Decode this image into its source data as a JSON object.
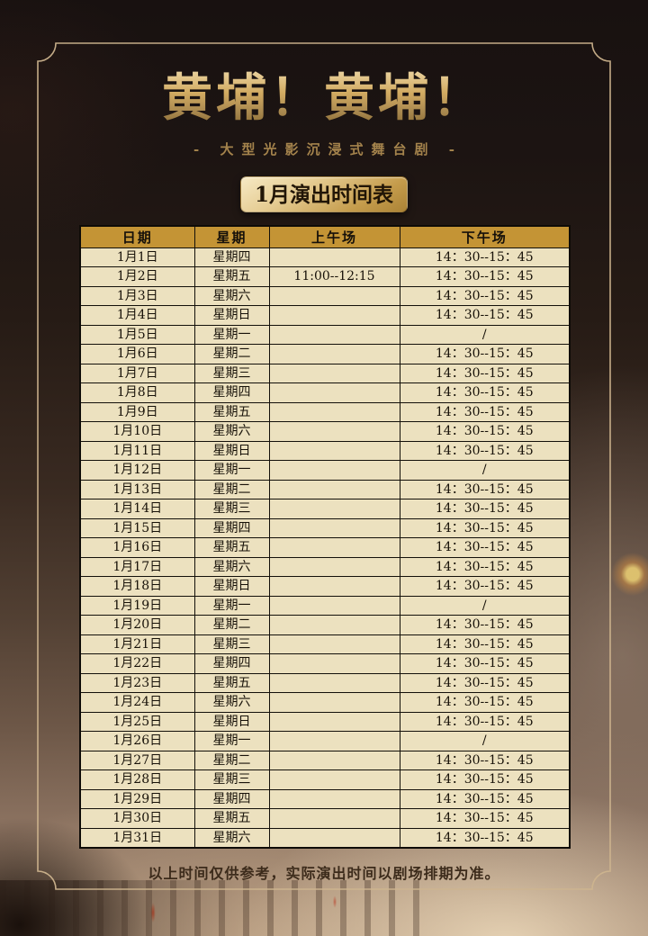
{
  "poster": {
    "title": "黄埔！黄埔！",
    "subtitle": "- 大型光影沉浸式舞台剧 -",
    "badge": "1月演出时间表",
    "footnote": "以上时间仅供参考，实际演出时间以剧场排期为准。"
  },
  "table": {
    "headers": [
      "日期",
      "星期",
      "上午场",
      "下午场"
    ],
    "rows": [
      {
        "date": "1月1日",
        "weekday": "星期四",
        "morning": "",
        "afternoon": "14：30--15：45"
      },
      {
        "date": "1月2日",
        "weekday": "星期五",
        "morning": "11:00--12:15",
        "afternoon": "14：30--15：45"
      },
      {
        "date": "1月3日",
        "weekday": "星期六",
        "morning": "",
        "afternoon": "14：30--15：45"
      },
      {
        "date": "1月4日",
        "weekday": "星期日",
        "morning": "",
        "afternoon": "14：30--15：45"
      },
      {
        "date": "1月5日",
        "weekday": "星期一",
        "morning": "",
        "afternoon": "/"
      },
      {
        "date": "1月6日",
        "weekday": "星期二",
        "morning": "",
        "afternoon": "14：30--15：45"
      },
      {
        "date": "1月7日",
        "weekday": "星期三",
        "morning": "",
        "afternoon": "14：30--15：45"
      },
      {
        "date": "1月8日",
        "weekday": "星期四",
        "morning": "",
        "afternoon": "14：30--15：45"
      },
      {
        "date": "1月9日",
        "weekday": "星期五",
        "morning": "",
        "afternoon": "14：30--15：45"
      },
      {
        "date": "1月10日",
        "weekday": "星期六",
        "morning": "",
        "afternoon": "14：30--15：45"
      },
      {
        "date": "1月11日",
        "weekday": "星期日",
        "morning": "",
        "afternoon": "14：30--15：45"
      },
      {
        "date": "1月12日",
        "weekday": "星期一",
        "morning": "",
        "afternoon": "/"
      },
      {
        "date": "1月13日",
        "weekday": "星期二",
        "morning": "",
        "afternoon": "14：30--15：45"
      },
      {
        "date": "1月14日",
        "weekday": "星期三",
        "morning": "",
        "afternoon": "14：30--15：45"
      },
      {
        "date": "1月15日",
        "weekday": "星期四",
        "morning": "",
        "afternoon": "14：30--15：45"
      },
      {
        "date": "1月16日",
        "weekday": "星期五",
        "morning": "",
        "afternoon": "14：30--15：45"
      },
      {
        "date": "1月17日",
        "weekday": "星期六",
        "morning": "",
        "afternoon": "14：30--15：45"
      },
      {
        "date": "1月18日",
        "weekday": "星期日",
        "morning": "",
        "afternoon": "14：30--15：45"
      },
      {
        "date": "1月19日",
        "weekday": "星期一",
        "morning": "",
        "afternoon": "/"
      },
      {
        "date": "1月20日",
        "weekday": "星期二",
        "morning": "",
        "afternoon": "14：30--15：45"
      },
      {
        "date": "1月21日",
        "weekday": "星期三",
        "morning": "",
        "afternoon": "14：30--15：45"
      },
      {
        "date": "1月22日",
        "weekday": "星期四",
        "morning": "",
        "afternoon": "14：30--15：45"
      },
      {
        "date": "1月23日",
        "weekday": "星期五",
        "morning": "",
        "afternoon": "14：30--15：45"
      },
      {
        "date": "1月24日",
        "weekday": "星期六",
        "morning": "",
        "afternoon": "14：30--15：45"
      },
      {
        "date": "1月25日",
        "weekday": "星期日",
        "morning": "",
        "afternoon": "14：30--15：45"
      },
      {
        "date": "1月26日",
        "weekday": "星期一",
        "morning": "",
        "afternoon": "/"
      },
      {
        "date": "1月27日",
        "weekday": "星期二",
        "morning": "",
        "afternoon": "14：30--15：45"
      },
      {
        "date": "1月28日",
        "weekday": "星期三",
        "morning": "",
        "afternoon": "14：30--15：45"
      },
      {
        "date": "1月29日",
        "weekday": "星期四",
        "morning": "",
        "afternoon": "14：30--15：45"
      },
      {
        "date": "1月30日",
        "weekday": "星期五",
        "morning": "",
        "afternoon": "14：30--15：45"
      },
      {
        "date": "1月31日",
        "weekday": "星期六",
        "morning": "",
        "afternoon": "14：30--15：45"
      }
    ]
  },
  "colors": {
    "gold_accent": "#c9a35b",
    "header_bg": "#c49435",
    "row_bg": "#ece1bf",
    "table_border": "#13100a",
    "frame_line": "#cdb48e",
    "badge_text": "#211506",
    "footnote_text": "#3c2b1b"
  }
}
